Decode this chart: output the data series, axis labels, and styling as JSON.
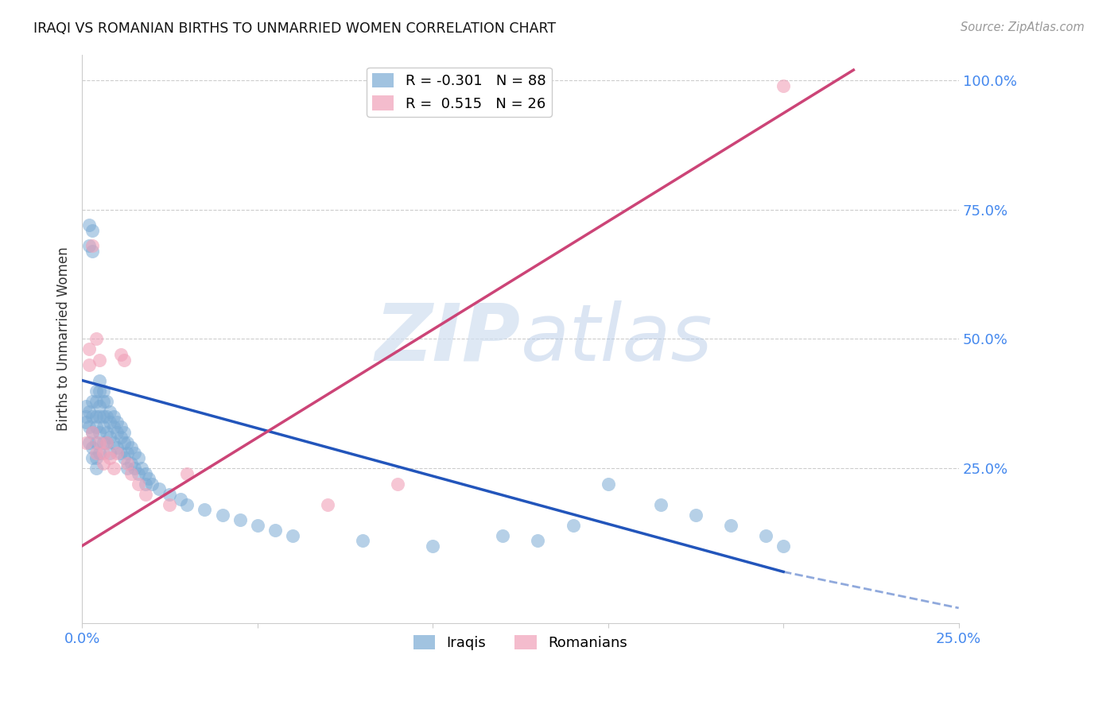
{
  "title": "IRAQI VS ROMANIAN BIRTHS TO UNMARRIED WOMEN CORRELATION CHART",
  "source": "Source: ZipAtlas.com",
  "ylabel": "Births to Unmarried Women",
  "xlim": [
    0.0,
    0.25
  ],
  "ylim": [
    -0.05,
    1.05
  ],
  "xtick_positions": [
    0.0,
    0.05,
    0.1,
    0.15,
    0.2,
    0.25
  ],
  "xticklabels": [
    "0.0%",
    "",
    "",
    "",
    "",
    "25.0%"
  ],
  "ytick_right_positions": [
    0.0,
    0.25,
    0.5,
    0.75,
    1.0
  ],
  "yticklabels_right": [
    "",
    "25.0%",
    "50.0%",
    "75.0%",
    "100.0%"
  ],
  "grid_color": "#cccccc",
  "background_color": "#ffffff",
  "iraqi_color": "#7aaad4",
  "romanian_color": "#f0a0b8",
  "iraqi_R": -0.301,
  "iraqi_N": 88,
  "romanian_R": 0.515,
  "romanian_N": 26,
  "legend_label_iraqi": "Iraqis",
  "legend_label_romanian": "Romanians",
  "title_color": "#111111",
  "right_axis_color": "#4488ee",
  "bottom_axis_color": "#4488ee",
  "iraqi_line_color": "#2255bb",
  "romanian_line_color": "#cc4477",
  "iraqi_line": [
    0.0,
    0.2,
    0.42,
    0.05
  ],
  "romanian_line": [
    0.0,
    0.22,
    0.1,
    1.02
  ],
  "dashed_line": [
    0.2,
    0.25,
    0.05,
    -0.02
  ],
  "iraqi_scatter_x": [
    0.001,
    0.001,
    0.001,
    0.002,
    0.002,
    0.002,
    0.002,
    0.002,
    0.003,
    0.003,
    0.003,
    0.003,
    0.003,
    0.003,
    0.003,
    0.004,
    0.004,
    0.004,
    0.004,
    0.004,
    0.004,
    0.004,
    0.005,
    0.005,
    0.005,
    0.005,
    0.005,
    0.005,
    0.006,
    0.006,
    0.006,
    0.006,
    0.006,
    0.007,
    0.007,
    0.007,
    0.007,
    0.008,
    0.008,
    0.008,
    0.008,
    0.009,
    0.009,
    0.009,
    0.01,
    0.01,
    0.01,
    0.011,
    0.011,
    0.011,
    0.012,
    0.012,
    0.012,
    0.013,
    0.013,
    0.013,
    0.014,
    0.014,
    0.015,
    0.015,
    0.016,
    0.016,
    0.017,
    0.018,
    0.018,
    0.019,
    0.02,
    0.022,
    0.025,
    0.028,
    0.03,
    0.035,
    0.04,
    0.045,
    0.05,
    0.055,
    0.06,
    0.08,
    0.1,
    0.12,
    0.13,
    0.14,
    0.15,
    0.165,
    0.175,
    0.185,
    0.195,
    0.2
  ],
  "iraqi_scatter_y": [
    0.35,
    0.37,
    0.34,
    0.68,
    0.72,
    0.36,
    0.33,
    0.3,
    0.71,
    0.67,
    0.38,
    0.35,
    0.32,
    0.29,
    0.27,
    0.4,
    0.38,
    0.35,
    0.33,
    0.3,
    0.27,
    0.25,
    0.42,
    0.4,
    0.37,
    0.35,
    0.32,
    0.28,
    0.4,
    0.38,
    0.35,
    0.33,
    0.3,
    0.38,
    0.35,
    0.32,
    0.3,
    0.36,
    0.34,
    0.31,
    0.28,
    0.35,
    0.33,
    0.3,
    0.34,
    0.32,
    0.29,
    0.33,
    0.31,
    0.28,
    0.32,
    0.3,
    0.27,
    0.3,
    0.28,
    0.25,
    0.29,
    0.26,
    0.28,
    0.25,
    0.27,
    0.24,
    0.25,
    0.24,
    0.22,
    0.23,
    0.22,
    0.21,
    0.2,
    0.19,
    0.18,
    0.17,
    0.16,
    0.15,
    0.14,
    0.13,
    0.12,
    0.11,
    0.1,
    0.12,
    0.11,
    0.14,
    0.22,
    0.18,
    0.16,
    0.14,
    0.12,
    0.1
  ],
  "romanian_scatter_x": [
    0.001,
    0.002,
    0.002,
    0.003,
    0.003,
    0.004,
    0.004,
    0.005,
    0.005,
    0.006,
    0.006,
    0.007,
    0.008,
    0.009,
    0.01,
    0.011,
    0.012,
    0.013,
    0.014,
    0.016,
    0.018,
    0.025,
    0.03,
    0.07,
    0.09,
    0.2
  ],
  "romanian_scatter_y": [
    0.3,
    0.48,
    0.45,
    0.68,
    0.32,
    0.5,
    0.28,
    0.46,
    0.3,
    0.28,
    0.26,
    0.3,
    0.27,
    0.25,
    0.28,
    0.47,
    0.46,
    0.26,
    0.24,
    0.22,
    0.2,
    0.18,
    0.24,
    0.18,
    0.22,
    0.99
  ],
  "watermark_zip": "ZIP",
  "watermark_atlas": "atlas"
}
